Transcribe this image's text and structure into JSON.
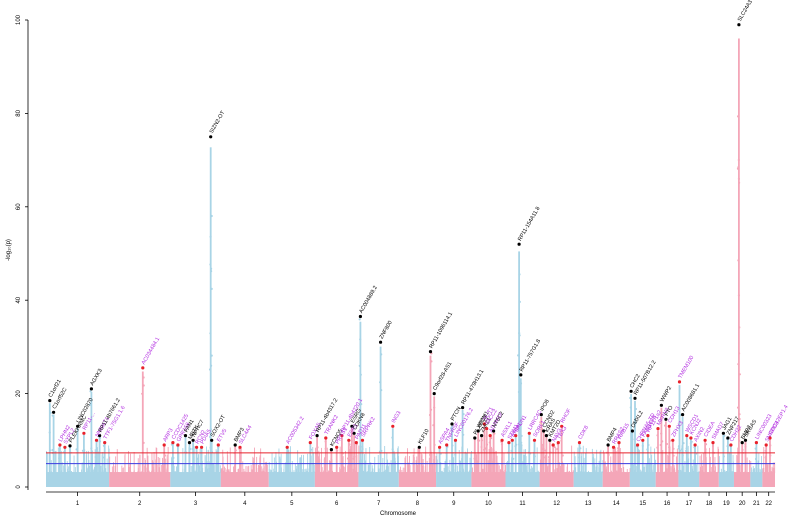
{
  "chart_data": {
    "type": "scatter",
    "subtype": "manhattan",
    "xlabel": "Chromosome",
    "ylabel": "-log₁₀(p)",
    "ylim": [
      0,
      100
    ],
    "yticks": [
      0,
      20,
      40,
      60,
      80,
      100
    ],
    "chromosomes": [
      "1",
      "2",
      "3",
      "4",
      "5",
      "6",
      "7",
      "8",
      "9",
      "10",
      "11",
      "12",
      "13",
      "14",
      "15",
      "16",
      "17",
      "18",
      "19",
      "20",
      "21",
      "22"
    ],
    "chromosome_colors": [
      "#a8d4e6",
      "#f4a6b8"
    ],
    "lead_colors": {
      "black": "#000000",
      "red": "#e8212a"
    },
    "label_colors": {
      "known": "#000000",
      "novel": "#b22ee0"
    },
    "threshold_lines": [
      {
        "name": "genome-wide",
        "y": 7.3,
        "color": "#e8212a"
      },
      {
        "name": "suggestive",
        "y": 5,
        "color": "#3a3ae0"
      }
    ],
    "peaks": [
      {
        "chr": 1,
        "pos": 0.06,
        "y": 18.5,
        "label": "C1orf21",
        "novel": false,
        "lead": "black"
      },
      {
        "chr": 1,
        "pos": 0.12,
        "y": 16.0,
        "label": "C1orf52C",
        "novel": false,
        "lead": "black"
      },
      {
        "chr": 1,
        "pos": 0.22,
        "y": 9.0,
        "label": "LPHN2",
        "novel": true,
        "lead": "red"
      },
      {
        "chr": 1,
        "pos": 0.3,
        "y": 8.5,
        "label": "SYPL2",
        "novel": true,
        "lead": "red"
      },
      {
        "chr": 1,
        "pos": 0.38,
        "y": 8.8,
        "label": "PLEKHAMC",
        "novel": false,
        "lead": "black"
      },
      {
        "chr": 1,
        "pos": 0.5,
        "y": 13.0,
        "label": "LINC02870",
        "novel": false,
        "lead": "black"
      },
      {
        "chr": 1,
        "pos": 0.6,
        "y": 11.5,
        "label": "RP11-...",
        "novel": true,
        "lead": "red"
      },
      {
        "chr": 1,
        "pos": 0.72,
        "y": 21.0,
        "label": "AGXK3",
        "novel": false,
        "lead": "black"
      },
      {
        "chr": 1,
        "pos": 0.8,
        "y": 10.0,
        "label": "NMNAT1",
        "novel": true,
        "lead": "red"
      },
      {
        "chr": 1,
        "pos": 0.85,
        "y": 11.0,
        "label": "RP11-4b7661.2",
        "novel": false,
        "lead": "black"
      },
      {
        "chr": 1,
        "pos": 0.93,
        "y": 9.5,
        "label": "TTF1-75G1.1.6",
        "novel": true,
        "lead": "red"
      },
      {
        "chr": 2,
        "pos": 0.55,
        "y": 25.5,
        "label": "AC034484.1",
        "novel": true,
        "lead": "red"
      },
      {
        "chr": 2,
        "pos": 0.9,
        "y": 9.0,
        "label": "ARP3",
        "novel": true,
        "lead": "red"
      },
      {
        "chr": 3,
        "pos": 0.05,
        "y": 9.5,
        "label": "CCDC1425",
        "novel": true,
        "lead": "red"
      },
      {
        "chr": 3,
        "pos": 0.15,
        "y": 9.0,
        "label": "GPR158",
        "novel": true,
        "lead": "red"
      },
      {
        "chr": 3,
        "pos": 0.3,
        "y": 11.0,
        "label": "FAN1",
        "novel": false,
        "lead": "black"
      },
      {
        "chr": 3,
        "pos": 0.38,
        "y": 9.5,
        "label": "MBTK",
        "novel": false,
        "lead": "black"
      },
      {
        "chr": 3,
        "pos": 0.45,
        "y": 10.0,
        "label": "NPHC7",
        "novel": false,
        "lead": "black"
      },
      {
        "chr": 3,
        "pos": 0.52,
        "y": 8.5,
        "label": "RCN2",
        "novel": true,
        "lead": "red"
      },
      {
        "chr": 3,
        "pos": 0.62,
        "y": 8.5,
        "label": "PDIA5",
        "novel": true,
        "lead": "red"
      },
      {
        "chr": 3,
        "pos": 0.8,
        "y": 75.0,
        "label": "SIZN2-OT",
        "novel": false,
        "lead": "black"
      },
      {
        "chr": 3,
        "pos": 0.82,
        "y": 10.0,
        "label": "SOX2-OT",
        "novel": false,
        "lead": "black"
      },
      {
        "chr": 3,
        "pos": 0.95,
        "y": 9.0,
        "label": "ETV5",
        "novel": true,
        "lead": "red"
      },
      {
        "chr": 4,
        "pos": 0.3,
        "y": 9.0,
        "label": "BMP3",
        "novel": false,
        "lead": "black"
      },
      {
        "chr": 4,
        "pos": 0.4,
        "y": 8.5,
        "label": "SLC4A4",
        "novel": true,
        "lead": "red"
      },
      {
        "chr": 5,
        "pos": 0.4,
        "y": 8.5,
        "label": "AC005342.2",
        "novel": true,
        "lead": "red"
      },
      {
        "chr": 5,
        "pos": 0.9,
        "y": 9.5,
        "label": "FOXA5",
        "novel": true,
        "lead": "red"
      },
      {
        "chr": 6,
        "pos": 0.05,
        "y": 11.0,
        "label": "RP11-4b4317.2",
        "novel": false,
        "lead": "black"
      },
      {
        "chr": 6,
        "pos": 0.25,
        "y": 10.5,
        "label": "TRANK2",
        "novel": true,
        "lead": "red"
      },
      {
        "chr": 6,
        "pos": 0.38,
        "y": 8.0,
        "label": "KCNQ5",
        "novel": false,
        "lead": "black"
      },
      {
        "chr": 6,
        "pos": 0.5,
        "y": 8.5,
        "label": "PRSS1",
        "novel": true,
        "lead": "red"
      },
      {
        "chr": 6,
        "pos": 0.62,
        "y": 11.0,
        "label": "RP11-4b4220.1",
        "novel": true,
        "lead": "red"
      },
      {
        "chr": 6,
        "pos": 0.78,
        "y": 10.0,
        "label": "ESR1",
        "novel": true,
        "lead": "red"
      },
      {
        "chr": 6,
        "pos": 0.85,
        "y": 13.0,
        "label": "ESRG",
        "novel": false,
        "lead": "black"
      },
      {
        "chr": 6,
        "pos": 0.9,
        "y": 11.5,
        "label": "CDKN8",
        "novel": false,
        "lead": "black"
      },
      {
        "chr": 6,
        "pos": 0.95,
        "y": 9.5,
        "label": "PAD11",
        "novel": true,
        "lead": "red"
      },
      {
        "chr": 7,
        "pos": 0.05,
        "y": 36.5,
        "label": "AC004889.2",
        "novel": false,
        "lead": "black"
      },
      {
        "chr": 7,
        "pos": 0.1,
        "y": 10.0,
        "label": "SRPRK2",
        "novel": true,
        "lead": "red"
      },
      {
        "chr": 7,
        "pos": 0.55,
        "y": 31.0,
        "label": "ZNF800",
        "novel": false,
        "lead": "black"
      },
      {
        "chr": 7,
        "pos": 0.85,
        "y": 13.0,
        "label": "ING3",
        "novel": true,
        "lead": "red"
      },
      {
        "chr": 8,
        "pos": 0.55,
        "y": 8.5,
        "label": "KLF10",
        "novel": false,
        "lead": "black"
      },
      {
        "chr": 8,
        "pos": 0.85,
        "y": 29.0,
        "label": "RP11-1096114.1",
        "novel": false,
        "lead": "black"
      },
      {
        "chr": 8,
        "pos": 0.95,
        "y": 20.0,
        "label": "C9orf28-AS1",
        "novel": false,
        "lead": "black"
      },
      {
        "chr": 9,
        "pos": 0.1,
        "y": 8.5,
        "label": "ASPA4",
        "novel": true,
        "lead": "red"
      },
      {
        "chr": 9,
        "pos": 0.3,
        "y": 9.0,
        "label": "TNFRSF",
        "novel": true,
        "lead": "red"
      },
      {
        "chr": 9,
        "pos": 0.45,
        "y": 13.5,
        "label": "PTCN",
        "novel": false,
        "lead": "black"
      },
      {
        "chr": 9,
        "pos": 0.55,
        "y": 10.0,
        "label": "LINC00176.2",
        "novel": true,
        "lead": "red"
      },
      {
        "chr": 9,
        "pos": 0.75,
        "y": 17.0,
        "label": "RP11-479H13.1",
        "novel": false,
        "lead": "black"
      },
      {
        "chr": 10,
        "pos": 0.1,
        "y": 10.5,
        "label": "PLXDC2",
        "novel": false,
        "lead": "black"
      },
      {
        "chr": 10,
        "pos": 0.2,
        "y": 12.0,
        "label": "AP3M1",
        "novel": false,
        "lead": "black"
      },
      {
        "chr": 10,
        "pos": 0.3,
        "y": 11.0,
        "label": "ZMIZ1",
        "novel": false,
        "lead": "black"
      },
      {
        "chr": 10,
        "pos": 0.38,
        "y": 13.5,
        "label": "SLIT1",
        "novel": true,
        "lead": "red"
      },
      {
        "chr": 10,
        "pos": 0.45,
        "y": 12.5,
        "label": "TACC2",
        "novel": true,
        "lead": "red"
      },
      {
        "chr": 10,
        "pos": 0.55,
        "y": 11.0,
        "label": "ADAM12",
        "novel": true,
        "lead": "red"
      },
      {
        "chr": 10,
        "pos": 0.65,
        "y": 12.0,
        "label": "NT5C2",
        "novel": false,
        "lead": "black"
      },
      {
        "chr": 10,
        "pos": 0.9,
        "y": 10.0,
        "label": "ASXL1",
        "novel": true,
        "lead": "red"
      },
      {
        "chr": 11,
        "pos": 0.1,
        "y": 9.5,
        "label": "STIM1",
        "novel": true,
        "lead": "red"
      },
      {
        "chr": 11,
        "pos": 0.2,
        "y": 10.0,
        "label": "RRM1",
        "novel": true,
        "lead": "red"
      },
      {
        "chr": 11,
        "pos": 0.3,
        "y": 11.0,
        "label": "SPON1",
        "novel": true,
        "lead": "red"
      },
      {
        "chr": 11,
        "pos": 0.4,
        "y": 52.0,
        "label": "RP11-154A11.8",
        "novel": false,
        "lead": "black"
      },
      {
        "chr": 11,
        "pos": 0.45,
        "y": 24.0,
        "label": "RP11-757G1.8",
        "novel": false,
        "lead": "black"
      },
      {
        "chr": 11,
        "pos": 0.7,
        "y": 11.5,
        "label": "LRRC4C",
        "novel": true,
        "lead": "red"
      },
      {
        "chr": 11,
        "pos": 0.85,
        "y": 10.0,
        "label": "SORL1",
        "novel": true,
        "lead": "red"
      },
      {
        "chr": 12,
        "pos": 0.05,
        "y": 15.5,
        "label": "IPO8",
        "novel": false,
        "lead": "black"
      },
      {
        "chr": 12,
        "pos": 0.12,
        "y": 12.0,
        "label": "CCND2",
        "novel": false,
        "lead": "black"
      },
      {
        "chr": 12,
        "pos": 0.2,
        "y": 11.0,
        "label": "KRAS",
        "novel": false,
        "lead": "black"
      },
      {
        "chr": 12,
        "pos": 0.3,
        "y": 10.0,
        "label": "KMT2D",
        "novel": false,
        "lead": "black"
      },
      {
        "chr": 12,
        "pos": 0.4,
        "y": 9.0,
        "label": "NAV3",
        "novel": true,
        "lead": "red"
      },
      {
        "chr": 12,
        "pos": 0.55,
        "y": 9.5,
        "label": "TBX3",
        "novel": true,
        "lead": "red"
      },
      {
        "chr": 12,
        "pos": 0.65,
        "y": 13.0,
        "label": "RHOF",
        "novel": true,
        "lead": "red"
      },
      {
        "chr": 13,
        "pos": 0.2,
        "y": 9.5,
        "label": "CDK8",
        "novel": true,
        "lead": "red"
      },
      {
        "chr": 14,
        "pos": 0.2,
        "y": 9.0,
        "label": "BMP4",
        "novel": false,
        "lead": "black"
      },
      {
        "chr": 14,
        "pos": 0.4,
        "y": 8.5,
        "label": "RRAS2",
        "novel": true,
        "lead": "red"
      },
      {
        "chr": 14,
        "pos": 0.6,
        "y": 9.5,
        "label": "RAB15",
        "novel": true,
        "lead": "red"
      },
      {
        "chr": 15,
        "pos": 0.05,
        "y": 20.5,
        "label": "CHC2",
        "novel": false,
        "lead": "black"
      },
      {
        "chr": 15,
        "pos": 0.1,
        "y": 12.0,
        "label": "DMXL2",
        "novel": false,
        "lead": "black"
      },
      {
        "chr": 15,
        "pos": 0.2,
        "y": 19.0,
        "label": "RP11-507B12.2",
        "novel": false,
        "lead": "black"
      },
      {
        "chr": 15,
        "pos": 0.3,
        "y": 9.0,
        "label": "CHRNA5-TD",
        "novel": true,
        "lead": "red"
      },
      {
        "chr": 15,
        "pos": 0.5,
        "y": 10.0,
        "label": "FAM169B",
        "novel": true,
        "lead": "red"
      },
      {
        "chr": 15,
        "pos": 0.7,
        "y": 11.0,
        "label": "RP11-1a2",
        "novel": true,
        "lead": "red"
      },
      {
        "chr": 16,
        "pos": 0.1,
        "y": 12.5,
        "label": "MKRN3",
        "novel": true,
        "lead": "red"
      },
      {
        "chr": 16,
        "pos": 0.25,
        "y": 17.5,
        "label": "WWP2",
        "novel": false,
        "lead": "black"
      },
      {
        "chr": 16,
        "pos": 0.45,
        "y": 14.5,
        "label": "FTO",
        "novel": false,
        "lead": "black"
      },
      {
        "chr": 16,
        "pos": 0.6,
        "y": 13.0,
        "label": "CDH13",
        "novel": true,
        "lead": "red"
      },
      {
        "chr": 16,
        "pos": 0.75,
        "y": 10.0,
        "label": "ZFHX3",
        "novel": true,
        "lead": "red"
      },
      {
        "chr": 17,
        "pos": 0.05,
        "y": 22.5,
        "label": "TMEM100",
        "novel": true,
        "lead": "red"
      },
      {
        "chr": 17,
        "pos": 0.2,
        "y": 15.5,
        "label": "AC008681.1",
        "novel": false,
        "lead": "black"
      },
      {
        "chr": 17,
        "pos": 0.4,
        "y": 11.0,
        "label": "WSCD1",
        "novel": true,
        "lead": "red"
      },
      {
        "chr": 17,
        "pos": 0.6,
        "y": 10.5,
        "label": "KCNJ2",
        "novel": true,
        "lead": "red"
      },
      {
        "chr": 17,
        "pos": 0.8,
        "y": 9.0,
        "label": "AXIN2",
        "novel": true,
        "lead": "red"
      },
      {
        "chr": 18,
        "pos": 0.3,
        "y": 10.0,
        "label": "CIDEA",
        "novel": true,
        "lead": "red"
      },
      {
        "chr": 18,
        "pos": 0.7,
        "y": 9.5,
        "label": "SMAD7",
        "novel": true,
        "lead": "red"
      },
      {
        "chr": 19,
        "pos": 0.3,
        "y": 11.5,
        "label": "JAG1",
        "novel": false,
        "lead": "black"
      },
      {
        "chr": 19,
        "pos": 0.6,
        "y": 10.5,
        "label": "ZNF217",
        "novel": false,
        "lead": "black"
      },
      {
        "chr": 19,
        "pos": 0.8,
        "y": 9.0,
        "label": "CDH22",
        "novel": true,
        "lead": "red"
      },
      {
        "chr": 20,
        "pos": 0.3,
        "y": 99.0,
        "label": "SLC24A3",
        "novel": false,
        "lead": "black"
      },
      {
        "chr": 20,
        "pos": 0.5,
        "y": 9.5,
        "label": "BMP2",
        "novel": false,
        "lead": "black"
      },
      {
        "chr": 20,
        "pos": 0.7,
        "y": 10.0,
        "label": "SRCAS",
        "novel": false,
        "lead": "black"
      },
      {
        "chr": 21,
        "pos": 0.5,
        "y": 9.5,
        "label": "LINC00323",
        "novel": true,
        "lead": "red"
      },
      {
        "chr": 22,
        "pos": 0.3,
        "y": 9.0,
        "label": "SNRPD3",
        "novel": true,
        "lead": "red"
      },
      {
        "chr": 22,
        "pos": 0.6,
        "y": 10.5,
        "label": "CDC42EP1.4",
        "novel": true,
        "lead": "red"
      }
    ],
    "grid": false,
    "legend": "none"
  }
}
